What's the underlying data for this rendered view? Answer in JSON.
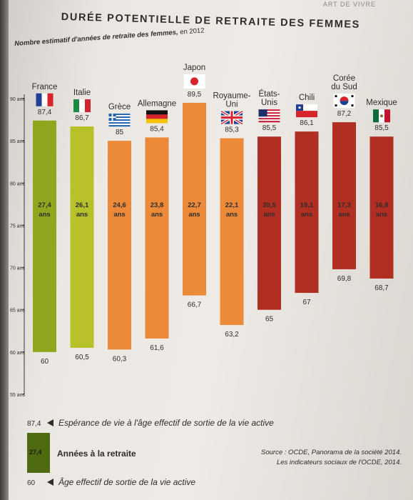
{
  "section_tag": "ART DE VIVRE",
  "title": "DURÉE POTENTIELLE DE RETRAITE DES FEMMES",
  "subtitle": "Nombre estimatif d'années de retraite des femmes,",
  "subtitle_year": "en 2012",
  "colors": {
    "green_dark": "#4f6b12",
    "green": "#8fa61f",
    "green_light": "#b8c02a",
    "orange": "#ec8a3a",
    "red": "#b02e22",
    "text": "#2f2d2b"
  },
  "chart_data": {
    "type": "bar",
    "ylim": [
      55,
      90
    ],
    "yticks": [
      55,
      60,
      65,
      70,
      75,
      80,
      85,
      90
    ],
    "ytick_labels": [
      "55 ans",
      "60 ans",
      "65 ans",
      "70 ans",
      "75 ans",
      "80 ans",
      "85 ans",
      "90 ans"
    ],
    "categories": [
      "France",
      "Italie",
      "Grèce",
      "Allemagne",
      "Japon",
      "Royaume-Uni",
      "États-Unis",
      "Chili",
      "Corée du Sud",
      "Mexique"
    ],
    "label_lines": [
      [
        "France"
      ],
      [
        "Italie"
      ],
      [
        "Grèce"
      ],
      [
        "Allemagne"
      ],
      [
        "Japon"
      ],
      [
        "Royaume-",
        "Uni"
      ],
      [
        "États-",
        "Unis"
      ],
      [
        "Chili"
      ],
      [
        "Corée",
        "du Sud"
      ],
      [
        "Mexique"
      ]
    ],
    "flags": [
      "flag-france",
      "flag-italy",
      "flag-greece",
      "flag-germany",
      "flag-japan",
      "flag-uk",
      "flag-usa",
      "flag-chile",
      "flag-korea",
      "flag-mexico"
    ],
    "life_expectancy": [
      87.4,
      86.7,
      85,
      85.4,
      89.5,
      85.3,
      85.5,
      86.1,
      87.2,
      85.5
    ],
    "life_expectancy_labels": [
      "87,4",
      "86,7",
      "85",
      "85,4",
      "89,5",
      "85,3",
      "85,5",
      "86,1",
      "87,2",
      "85,5"
    ],
    "exit_age": [
      60,
      60.5,
      60.3,
      61.6,
      66.7,
      63.2,
      65,
      67,
      69.8,
      68.7
    ],
    "exit_age_labels": [
      "60",
      "60,5",
      "60,3",
      "61,6",
      "66,7",
      "63,2",
      "65",
      "67",
      "69,8",
      "68,7"
    ],
    "retirement_years": [
      27.4,
      26.1,
      24.6,
      23.8,
      22.7,
      22.1,
      20.5,
      19.1,
      17.3,
      16.8
    ],
    "retirement_labels": [
      "27,4",
      "26,1",
      "24,6",
      "23,8",
      "22,7",
      "22,1",
      "20,5",
      "19,1",
      "17,3",
      "16,8"
    ],
    "years_unit": "ans",
    "bar_colors": [
      "#8fa61f",
      "#b8c02a",
      "#ec8a3a",
      "#ec8a3a",
      "#ec8a3a",
      "#ec8a3a",
      "#b02e22",
      "#b02e22",
      "#b02e22",
      "#b02e22"
    ]
  },
  "legend": {
    "top_num": "87,4",
    "top_text": "Espérance de vie à l'âge effectif de sortie de la vie active",
    "mid_num": "27,4",
    "mid_text": "Années à la retraite",
    "bottom_num": "60",
    "bottom_text": "Âge effectif de sortie de la vie active"
  },
  "source": {
    "line1": "Source : OCDE, Panorama de la société 2014.",
    "line2": "Les indicateurs sociaux de l'OCDE, 2014."
  }
}
